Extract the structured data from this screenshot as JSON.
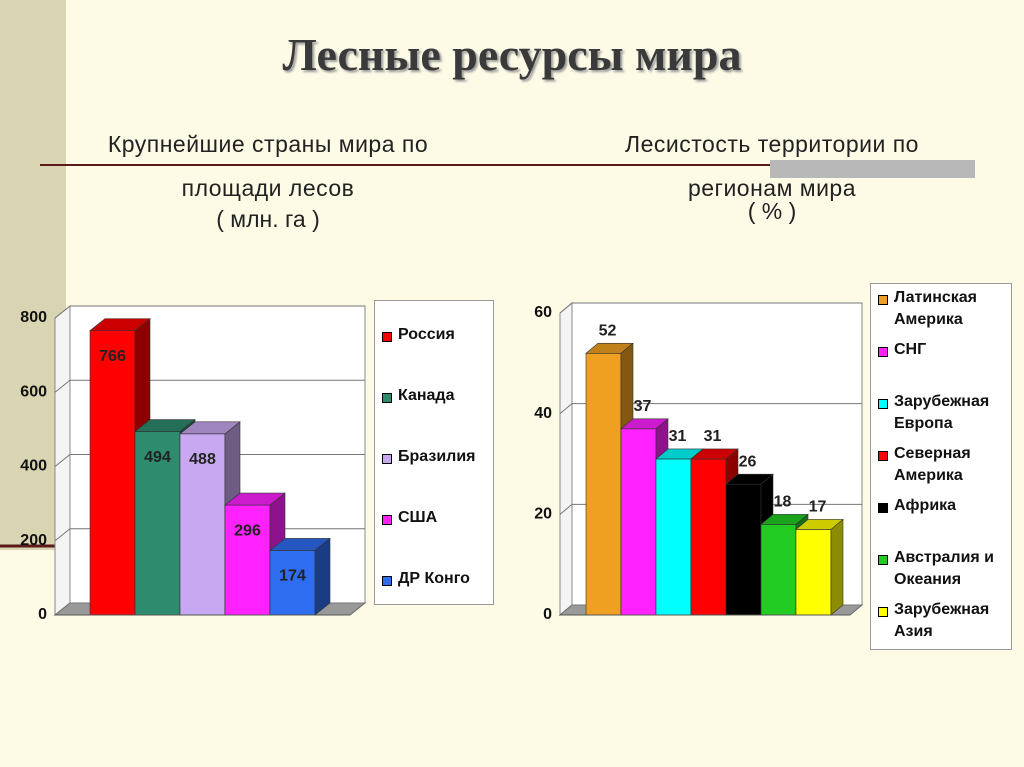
{
  "title": "Лесные ресурсы мира",
  "chart_data": [
    {
      "type": "bar3d",
      "title": "Крупнейшие страны мира по площади лесов",
      "subtitle": "( млн. га )",
      "categories": [
        "Россия",
        "Канада",
        "Бразилия",
        "США",
        "ДР Конго"
      ],
      "values": [
        766,
        494,
        488,
        296,
        174
      ],
      "colors": [
        "#ff0000",
        "#2e8b6e",
        "#c8a8f0",
        "#ff22ff",
        "#2f6df0"
      ],
      "ylim": [
        0,
        800
      ],
      "yticks": [
        0,
        200,
        400,
        600,
        800
      ],
      "grid": true,
      "legend": "right"
    },
    {
      "type": "bar3d",
      "title": "Лесистость территории по регионам мира",
      "subtitle": "( % )",
      "categories": [
        "Латинская Америка",
        "СНГ",
        "Зарубежная Европа",
        "Северная Америка",
        "Африка",
        "Австралия и Океания",
        "Зарубежная Азия"
      ],
      "values": [
        52,
        37,
        31,
        31,
        26,
        18,
        17
      ],
      "colors": [
        "#f0a020",
        "#ff22ff",
        "#00ffff",
        "#ff0000",
        "#000000",
        "#22cc22",
        "#ffff00"
      ],
      "ylim": [
        0,
        60
      ],
      "yticks": [
        0,
        20,
        40,
        60
      ],
      "grid": true,
      "legend": "right"
    }
  ]
}
